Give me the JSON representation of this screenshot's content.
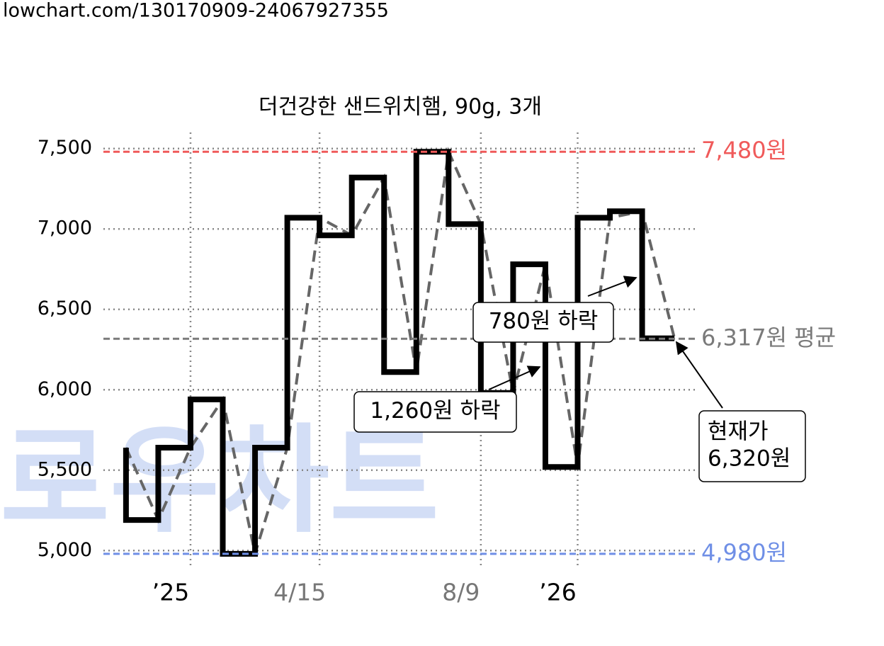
{
  "source": "lowchart.com/130170909-24067927355",
  "watermark": "로우차트",
  "chart_data": {
    "type": "line",
    "title": "더건강한 샌드위치햄, 90g, 3개",
    "x": [
      0,
      1,
      2,
      3,
      4,
      5,
      6,
      7,
      8,
      9,
      10,
      11,
      12,
      13,
      14,
      15,
      16,
      17
    ],
    "series": [
      {
        "color": "#000000",
        "values": [
          5640,
          5190,
          5640,
          5940,
          4980,
          5640,
          7070,
          6960,
          7320,
          6110,
          7480,
          7030,
          5980,
          6780,
          5520,
          7070,
          7110,
          6320
        ]
      }
    ],
    "trend_color": "#666666",
    "xlim": [
      -0.7,
      17.7
    ],
    "xticks": [
      {
        "value": 2,
        "label": "’25"
      },
      {
        "value": 6,
        "label": "4/15"
      },
      {
        "value": 11,
        "label": "8/9"
      },
      {
        "value": 14,
        "label": "’26"
      }
    ],
    "xtick_colors": [
      "#000000",
      "#777777",
      "#777777",
      "#000000"
    ],
    "ylim": [
      4900,
      7600
    ],
    "yticks": [
      {
        "value": 5000,
        "label": "5,000"
      },
      {
        "value": 5500,
        "label": "5,500"
      },
      {
        "value": 6000,
        "label": "6,000"
      },
      {
        "value": 6500,
        "label": "6,500"
      },
      {
        "value": 7000,
        "label": "7,000"
      },
      {
        "value": 7500,
        "label": "7,500"
      }
    ],
    "grid": true,
    "reference_lines": [
      {
        "value": 7480,
        "label": "7,480원",
        "color": "#f05a5a"
      },
      {
        "value": 4980,
        "label": "4,980원",
        "color": "#6f8fe6"
      },
      {
        "value": 6317,
        "label": "6,317원 평균",
        "color": "#7a7a7a"
      }
    ],
    "annotations": [
      {
        "lines": [
          "780원 하락"
        ]
      },
      {
        "lines": [
          "1,260원 하락"
        ]
      },
      {
        "lines": [
          "현재가",
          "6,320원"
        ]
      }
    ]
  }
}
